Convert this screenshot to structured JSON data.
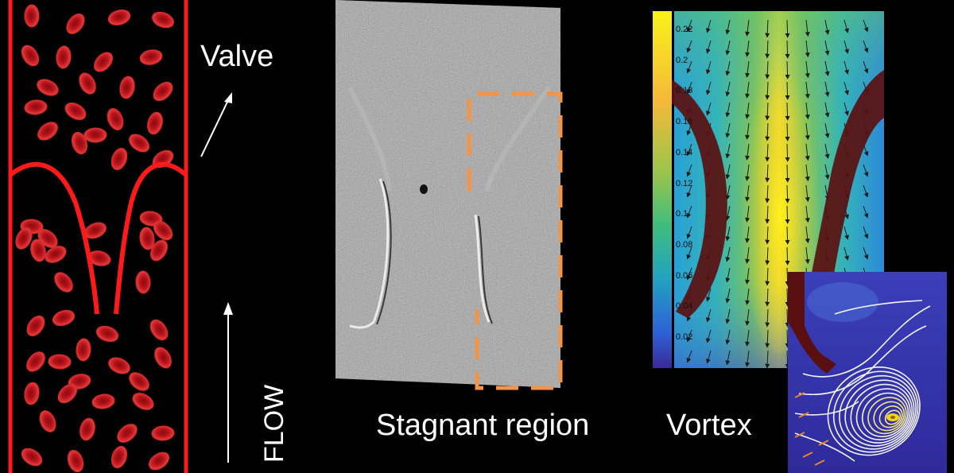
{
  "labels": {
    "valve": "Valve",
    "flow": "FLOW",
    "stagnant_region": "Stagnant region",
    "vortex": "Vortex"
  },
  "colorbar": {
    "ticks": [
      "0.22",
      "0.2",
      "0.18",
      "0.16",
      "0.14",
      "0.12",
      "0.1",
      "0.08",
      "0.06",
      "0.04",
      "0.02"
    ]
  },
  "colors": {
    "vessel_wall": "#ff1a1a",
    "blood_cell": "#c8161d",
    "dashed_box": "#f0954a",
    "leaflet": "#5a1010"
  }
}
